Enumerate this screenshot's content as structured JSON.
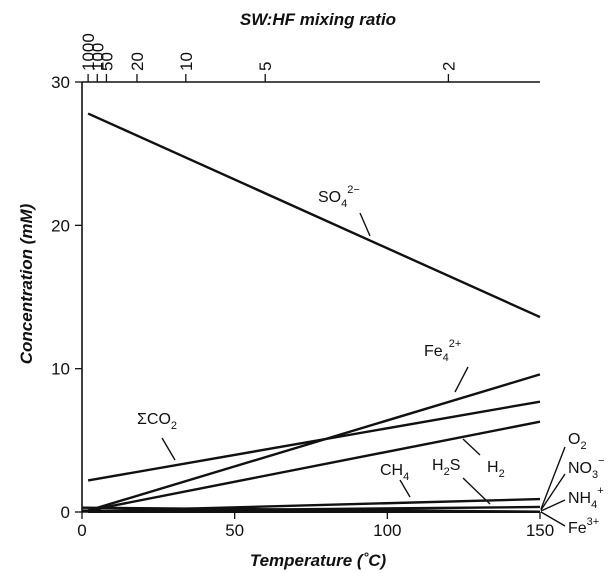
{
  "chart_data": {
    "type": "line",
    "title": "",
    "xlabel": "Temperature (˚C)",
    "ylabel": "Concentration (mM)",
    "top_axis_label": "SW:HF mixing ratio",
    "xlim": [
      0,
      150
    ],
    "ylim": [
      0,
      30
    ],
    "x_ticks": [
      "0",
      "50",
      "100",
      "150"
    ],
    "y_ticks": [
      "0",
      "10",
      "20",
      "30"
    ],
    "top_ticks": [
      {
        "label": "1000",
        "temperature": 2
      },
      {
        "label": "100",
        "temperature": 5
      },
      {
        "label": "50",
        "temperature": 8
      },
      {
        "label": "20",
        "temperature": 18
      },
      {
        "label": "10",
        "temperature": 34
      },
      {
        "label": "5",
        "temperature": 60
      },
      {
        "label": "2",
        "temperature": 120
      }
    ],
    "grid": false,
    "series": [
      {
        "name": "SO4 2−",
        "base": "SO",
        "sub": "4",
        "sup": "2−",
        "points": [
          [
            2,
            27.8
          ],
          [
            150,
            13.6
          ]
        ]
      },
      {
        "name": "Fe4 2+",
        "base": "Fe",
        "sub": "4",
        "sup": "2+",
        "points": [
          [
            2,
            0.1
          ],
          [
            150,
            9.6
          ]
        ]
      },
      {
        "name": "ΣCO2",
        "base": "ΣCO",
        "sub": "2",
        "sup": "",
        "points": [
          [
            2,
            2.2
          ],
          [
            150,
            7.7
          ]
        ]
      },
      {
        "name": "H2",
        "base": "H",
        "sub": "2",
        "sup": "",
        "points": [
          [
            2,
            0.1
          ],
          [
            150,
            6.3
          ]
        ]
      },
      {
        "name": "CH4",
        "base": "CH",
        "sub": "4",
        "sup": "",
        "points": [
          [
            2,
            0.05
          ],
          [
            150,
            0.9
          ]
        ]
      },
      {
        "name": "H2S",
        "base": "H",
        "sub": "2",
        "sup": "",
        "tail": "S",
        "points": [
          [
            2,
            0.05
          ],
          [
            150,
            0.35
          ]
        ]
      },
      {
        "name": "O2",
        "base": "O",
        "sub": "2",
        "sup": "",
        "points": [
          [
            0,
            0.3
          ],
          [
            150,
            0.02
          ]
        ]
      },
      {
        "name": "NO3−",
        "base": "NO",
        "sub": "3",
        "sup": "−",
        "points": [
          [
            0,
            0.1
          ],
          [
            150,
            0.02
          ]
        ]
      },
      {
        "name": "NH4+",
        "base": "NH",
        "sub": "4",
        "sup": "+",
        "points": [
          [
            2,
            0.01
          ],
          [
            150,
            0.02
          ]
        ]
      },
      {
        "name": "Fe3+",
        "base": "Fe",
        "sub": "",
        "sup": "3+",
        "points": [
          [
            2,
            0.01
          ],
          [
            150,
            0.01
          ]
        ]
      }
    ]
  }
}
